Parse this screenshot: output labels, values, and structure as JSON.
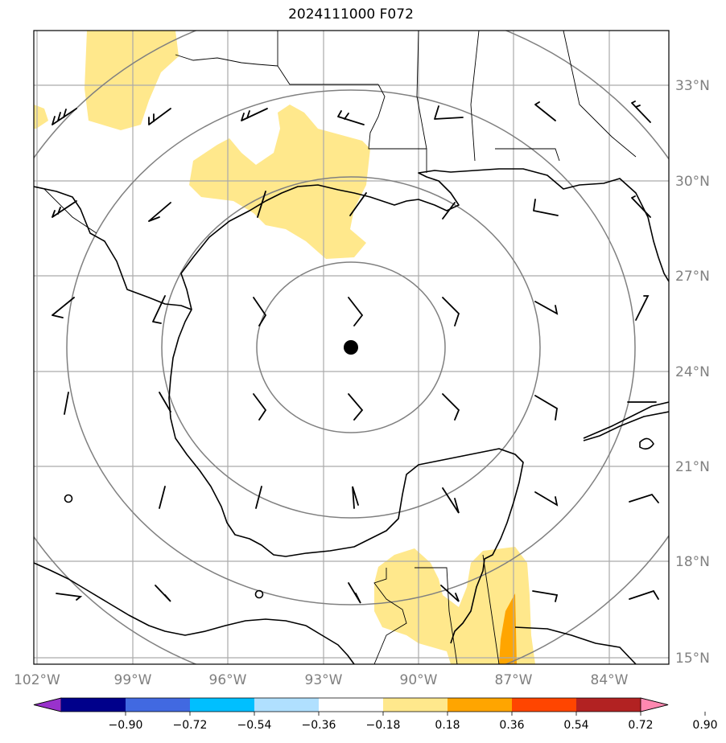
{
  "title": "2024111000 F072",
  "map": {
    "lon_labels": [
      "102°W",
      "99°W",
      "96°W",
      "93°W",
      "90°W",
      "87°W",
      "84°W"
    ],
    "lat_labels": [
      "33°N",
      "30°N",
      "27°N",
      "24°N",
      "21°N",
      "18°N",
      "15°N"
    ],
    "center_marker": "storm-center-dot",
    "range_rings": 4,
    "shaded_regions": [
      {
        "name": "north-texas-patch",
        "level": "0.18-0.36",
        "color": "#ffe88c"
      },
      {
        "name": "louisiana-patch",
        "level": "0.18-0.36",
        "color": "#ffe88c"
      },
      {
        "name": "central-america-patch",
        "level": "0.18-0.36",
        "color": "#ffe88c"
      },
      {
        "name": "honduras-core",
        "level": "0.36-0.54",
        "color": "#ffa500"
      }
    ]
  },
  "colorbar": {
    "tick_labels": [
      "−0.90",
      "−0.72",
      "−0.54",
      "−0.36",
      "−0.18",
      "0.18",
      "0.36",
      "0.54",
      "0.72",
      "0.90"
    ],
    "colors": [
      "#9932cc",
      "#00008b",
      "#4169e1",
      "#00bfff",
      "#b0e0ff",
      "#ffffff",
      "#ffe88c",
      "#ffa500",
      "#ff4500",
      "#b22222",
      "#ff88b0"
    ]
  }
}
